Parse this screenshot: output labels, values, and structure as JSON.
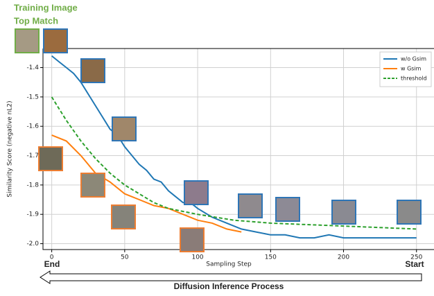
{
  "chart_data": {
    "type": "line",
    "xlabel": "Sampling Step",
    "ylabel": "Similarity Score (negative nL2)",
    "xlim": [
      -6,
      262
    ],
    "ylim": [
      -2.02,
      -1.335
    ],
    "xticks": [
      0,
      50,
      100,
      150,
      200,
      250
    ],
    "yticks": [
      -1.4,
      -1.5,
      -1.6,
      -1.7,
      -1.8,
      -1.9,
      {
        "value": -2,
        "label": "-2.0"
      }
    ],
    "grid": true,
    "legend": "upper right",
    "annotations": [
      "Training Image",
      "Top Match",
      "End",
      "Start",
      "Diffusion Inference Process"
    ],
    "series": [
      {
        "name": "w/o Gsim",
        "color": "#1f77b4",
        "style": "solid",
        "x": [
          0,
          5,
          10,
          15,
          20,
          25,
          30,
          35,
          40,
          45,
          50,
          55,
          60,
          65,
          70,
          75,
          80,
          85,
          90,
          95,
          100,
          110,
          120,
          130,
          140,
          150,
          160,
          170,
          180,
          190,
          200,
          210,
          220,
          230,
          240,
          250
        ],
        "values": [
          -1.36,
          -1.38,
          -1.4,
          -1.42,
          -1.45,
          -1.49,
          -1.53,
          -1.57,
          -1.61,
          -1.63,
          -1.67,
          -1.7,
          -1.73,
          -1.75,
          -1.78,
          -1.79,
          -1.82,
          -1.84,
          -1.86,
          -1.86,
          -1.88,
          -1.91,
          -1.93,
          -1.95,
          -1.96,
          -1.97,
          -1.97,
          -1.98,
          -1.98,
          -1.97,
          -1.98,
          -1.98,
          -1.98,
          -1.98,
          -1.98,
          -1.98
        ]
      },
      {
        "name": "w Gsim",
        "color": "#ff7f0e",
        "style": "solid",
        "x": [
          0,
          10,
          20,
          30,
          40,
          50,
          60,
          70,
          80,
          90,
          100,
          110,
          120,
          130
        ],
        "values": [
          -1.63,
          -1.65,
          -1.7,
          -1.76,
          -1.79,
          -1.83,
          -1.85,
          -1.87,
          -1.88,
          -1.9,
          -1.92,
          -1.93,
          -1.95,
          -1.96
        ]
      },
      {
        "name": "threshold",
        "color": "#2ca02c",
        "style": "dashed",
        "x": [
          0,
          10,
          20,
          30,
          40,
          50,
          60,
          70,
          80,
          90,
          100,
          125,
          150,
          200,
          250
        ],
        "values": [
          -1.5,
          -1.58,
          -1.65,
          -1.71,
          -1.76,
          -1.8,
          -1.83,
          -1.86,
          -1.88,
          -1.89,
          -1.9,
          -1.92,
          -1.93,
          -1.94,
          -1.95
        ]
      }
    ]
  }
}
